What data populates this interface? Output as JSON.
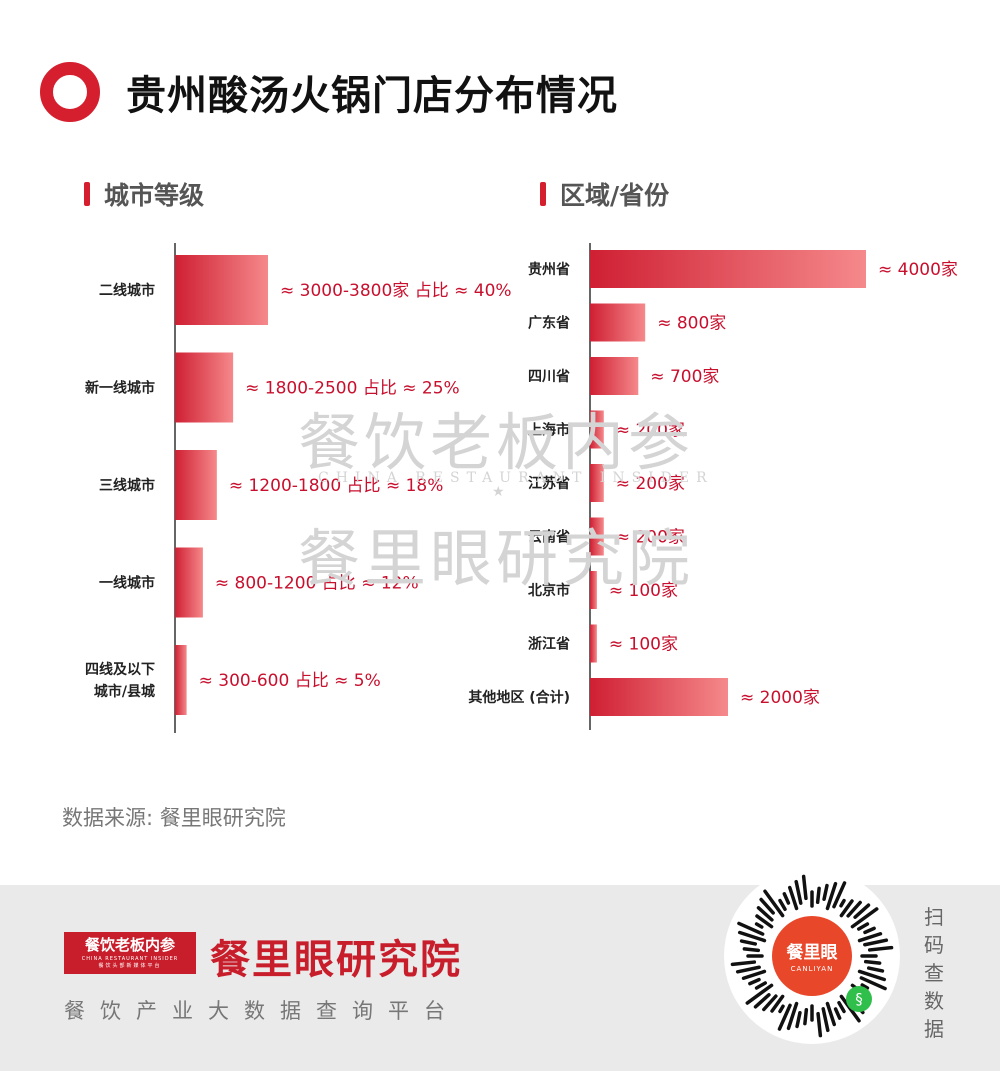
{
  "title": "贵州酸汤火锅门店分布情况",
  "watermark": {
    "line1": "餐饮老板内参",
    "sub": "CHINA RESTAURANT INSIDER",
    "star": "★",
    "line2": "餐里眼研究院"
  },
  "source": "数据来源: 餐里眼研究院",
  "footer": {
    "logo_main": "餐饮老板内参",
    "logo_en": "CHINA RESTAURANT INSIDER",
    "logo_cn": "餐饮头部新媒体平台",
    "brand": "餐里眼研究院",
    "slogan": "餐饮产业大数据查询平台",
    "qr_cn": "餐里眼",
    "qr_en": "CANLIYAN",
    "scan": "扫码查数据"
  },
  "colors": {
    "accent": "#d51e2e",
    "bar_dark": "#cf1f33",
    "bar_light": "#f5898b",
    "label": "#c8102e"
  },
  "chart_data": [
    {
      "type": "bar",
      "orientation": "horizontal",
      "title": "城市等级",
      "categories": [
        [
          "二线城市"
        ],
        [
          "新一线城市"
        ],
        [
          "三线城市"
        ],
        [
          "一线城市"
        ],
        [
          "四线及以下",
          "城市/县城"
        ]
      ],
      "values": [
        40,
        25,
        18,
        12,
        5
      ],
      "unit": "%",
      "labels": [
        "≈ 3000-3800家 占比 ≈ 40%",
        "≈ 1800-2500 占比 ≈ 25%",
        "≈ 1200-1800 占比 ≈ 18%",
        "≈ 800-1200 占比 ≈ 12%",
        "≈ 300-600 占比 ≈ 5%"
      ]
    },
    {
      "type": "bar",
      "orientation": "horizontal",
      "title": "区域/省份",
      "categories": [
        [
          "贵州省"
        ],
        [
          "广东省"
        ],
        [
          "四川省"
        ],
        [
          "上海市"
        ],
        [
          "江苏省"
        ],
        [
          "云南省"
        ],
        [
          "北京市"
        ],
        [
          "浙江省"
        ],
        [
          "其他地区 (合计)"
        ]
      ],
      "values": [
        4000,
        800,
        700,
        200,
        200,
        200,
        100,
        100,
        2000
      ],
      "unit": "家",
      "labels": [
        "≈ 4000家",
        "≈ 800家",
        "≈ 700家",
        "≈ 200家",
        "≈ 200家",
        "≈ 200家",
        "≈ 100家",
        "≈ 100家",
        "≈ 2000家"
      ]
    }
  ]
}
